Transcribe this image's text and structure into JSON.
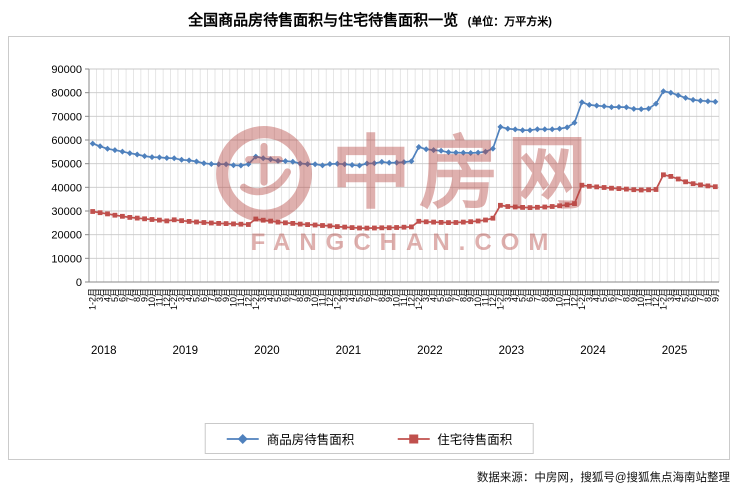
{
  "title": {
    "main": "全国商品房待售面积与住宅待售面积一览",
    "unit": "(单位：万平方米)"
  },
  "source_note": "数据来源：中房网，搜狐号@搜狐焦点海南站整理",
  "watermark": {
    "name": "中房网",
    "domain": "FANGCHAN.COM",
    "logo_icon": "fangchan-ring-logo",
    "color": "#B5443F"
  },
  "chart_data": {
    "type": "line",
    "title": "全国商品房待售面积与住宅待售面积一览（单位：万平方米）",
    "xlabel": "",
    "ylabel": "",
    "ylim": [
      0,
      90000
    ],
    "yticks": [
      0,
      10000,
      20000,
      30000,
      40000,
      50000,
      60000,
      70000,
      80000,
      90000
    ],
    "grid": true,
    "legend_position": "bottom",
    "years": [
      {
        "year": "2018",
        "months": [
          "1-2月",
          "3月",
          "4月",
          "5月",
          "6月",
          "7月",
          "8月",
          "9月",
          "10月",
          "11月",
          "12月"
        ]
      },
      {
        "year": "2019",
        "months": [
          "1-2月",
          "3月",
          "4月",
          "5月",
          "6月",
          "7月",
          "8月",
          "9月",
          "10月",
          "11月",
          "12月"
        ]
      },
      {
        "year": "2020",
        "months": [
          "1-2月",
          "3月",
          "4月",
          "5月",
          "6月",
          "7月",
          "8月",
          "9月",
          "10月",
          "11月",
          "12月"
        ]
      },
      {
        "year": "2021",
        "months": [
          "1-2月",
          "3月",
          "4月",
          "5月",
          "6月",
          "7月",
          "8月",
          "9月",
          "10月",
          "11月",
          "12月"
        ]
      },
      {
        "year": "2022",
        "months": [
          "1-2月",
          "3月",
          "4月",
          "5月",
          "6月",
          "7月",
          "8月",
          "9月",
          "10月",
          "11月",
          "12月"
        ]
      },
      {
        "year": "2023",
        "months": [
          "1-2月",
          "3月",
          "4月",
          "5月",
          "6月",
          "7月",
          "8月",
          "9月",
          "10月",
          "11月",
          "12月"
        ]
      },
      {
        "year": "2024",
        "months": [
          "1-2月",
          "3月",
          "4月",
          "5月",
          "6月",
          "7月",
          "8月",
          "9月",
          "10月",
          "11月",
          "12月"
        ]
      },
      {
        "year": "2025",
        "months": [
          "1-2月",
          "3月",
          "4月",
          "5月",
          "6月",
          "7月",
          "8月",
          "9月"
        ]
      }
    ],
    "series": [
      {
        "name": "商品房待售面积",
        "color": "#4F81BD",
        "marker": "diamond",
        "values": [
          58468,
          57329,
          56292,
          55718,
          55083,
          54428,
          53873,
          53191,
          52789,
          52627,
          52414,
          52251,
          51646,
          51380,
          50928,
          50162,
          49876,
          49784,
          49785,
          49346,
          49221,
          49821,
          52968,
          52255,
          51825,
          51184,
          51083,
          50815,
          50052,
          49821,
          49792,
          49287,
          49850,
          49952,
          49763,
          49416,
          49229,
          50083,
          50164,
          50738,
          50385,
          50463,
          50659,
          51023,
          57026,
          56113,
          55734,
          55433,
          54784,
          54655,
          54605,
          54494,
          54680,
          55052,
          56366,
          65528,
          64770,
          64487,
          64120,
          64159,
          64564,
          64524,
          64537,
          64795,
          65326,
          67295,
          75969,
          74833,
          74553,
          74256,
          73894,
          73926,
          73863,
          73141,
          73057,
          73286,
          75327,
          80610,
          79981,
          78914,
          77772,
          76948,
          76623,
          76379,
          76145
        ]
      },
      {
        "name": "住宅待售面积",
        "color": "#C0504D",
        "marker": "square",
        "values": [
          29800,
          29300,
          28760,
          28210,
          27740,
          27310,
          26980,
          26690,
          26420,
          26150,
          25810,
          26280,
          25890,
          25590,
          25340,
          25120,
          24930,
          24780,
          24660,
          24540,
          24430,
          24310,
          26620,
          26130,
          25720,
          25330,
          25020,
          24760,
          24480,
          24260,
          24070,
          23880,
          23690,
          23420,
          23190,
          22980,
          22830,
          22760,
          22810,
          22890,
          22950,
          23030,
          23140,
          23270,
          25640,
          25430,
          25290,
          25170,
          25080,
          25140,
          25290,
          25500,
          25790,
          26210,
          26950,
          32390,
          31900,
          31680,
          31510,
          31450,
          31560,
          31700,
          31920,
          32210,
          32620,
          33120,
          40920,
          40430,
          40180,
          39940,
          39650,
          39480,
          39250,
          39010,
          38870,
          38950,
          39090,
          45310,
          44620,
          43520,
          42330,
          41530,
          41010,
          40620,
          40280
        ]
      }
    ]
  }
}
